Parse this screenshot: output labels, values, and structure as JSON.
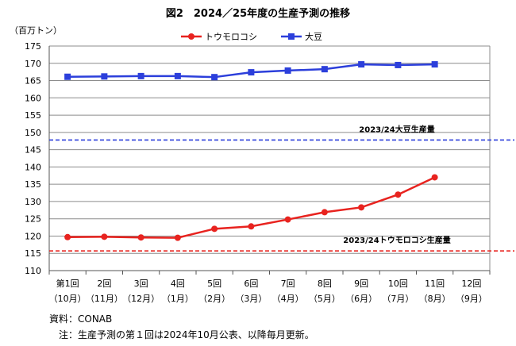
{
  "chart_data": {
    "type": "line",
    "title": "図2　2024／25年度の生産予測の推移",
    "unit_label": "（百万トン）",
    "categories": [
      {
        "top": "第1回",
        "bottom": "（10月）"
      },
      {
        "top": "2回",
        "bottom": "（11月）"
      },
      {
        "top": "3回",
        "bottom": "（12月）"
      },
      {
        "top": "4回",
        "bottom": "（1月）"
      },
      {
        "top": "5回",
        "bottom": "（2月）"
      },
      {
        "top": "6回",
        "bottom": "（3月）"
      },
      {
        "top": "7回",
        "bottom": "（4月）"
      },
      {
        "top": "8回",
        "bottom": "（5月）"
      },
      {
        "top": "9回",
        "bottom": "（6月）"
      },
      {
        "top": "10回",
        "bottom": "（7月）"
      },
      {
        "top": "11回",
        "bottom": "（8月）"
      },
      {
        "top": "12回",
        "bottom": "（9月）"
      }
    ],
    "ylim": [
      110,
      175
    ],
    "yticks": [
      110,
      115,
      120,
      125,
      130,
      135,
      140,
      145,
      150,
      155,
      160,
      165,
      170,
      175
    ],
    "grid": true,
    "legend_position": "top-center",
    "series": [
      {
        "name": "トウモロコシ",
        "color": "#e8231f",
        "marker": "circle",
        "values": [
          119.7,
          119.8,
          119.6,
          119.5,
          122.1,
          122.8,
          124.8,
          126.9,
          128.3,
          132.0,
          137.0,
          null
        ]
      },
      {
        "name": "大豆",
        "color": "#2c3fdb",
        "marker": "square",
        "values": [
          166.1,
          166.2,
          166.3,
          166.3,
          166.0,
          167.4,
          167.9,
          168.3,
          169.7,
          169.5,
          169.7,
          null
        ]
      }
    ],
    "reference_lines": [
      {
        "label": "2023/24大豆生産量",
        "value": 147.8,
        "color": "#2c3fdb"
      },
      {
        "label": "2023/24トウモロコシ生産量",
        "value": 115.7,
        "color": "#e8231f"
      }
    ]
  },
  "notes": {
    "source": "資料：CONAB",
    "note": "　注：生産予測の第１回は2024年10月公表、以降毎月更新。"
  }
}
